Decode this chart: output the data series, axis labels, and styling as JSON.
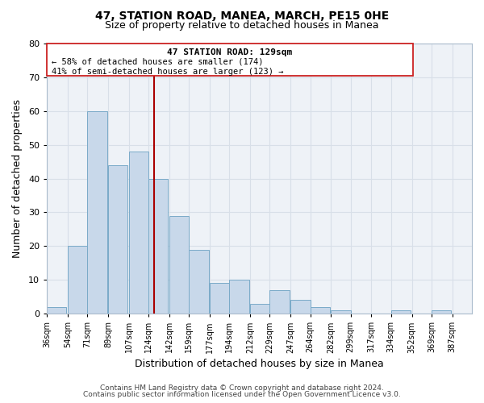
{
  "title": "47, STATION ROAD, MANEA, MARCH, PE15 0HE",
  "subtitle": "Size of property relative to detached houses in Manea",
  "xlabel": "Distribution of detached houses by size in Manea",
  "ylabel": "Number of detached properties",
  "bar_color": "#c8d8ea",
  "bar_edge_color": "#7aaac8",
  "bar_left_edges": [
    36,
    54,
    71,
    89,
    107,
    124,
    142,
    159,
    177,
    194,
    212,
    229,
    247,
    264,
    282,
    299,
    317,
    334,
    352,
    369
  ],
  "bar_heights": [
    2,
    20,
    60,
    44,
    48,
    40,
    29,
    19,
    9,
    10,
    3,
    7,
    4,
    2,
    1,
    0,
    0,
    1,
    0,
    1
  ],
  "bin_width": 17,
  "xtick_labels": [
    "36sqm",
    "54sqm",
    "71sqm",
    "89sqm",
    "107sqm",
    "124sqm",
    "142sqm",
    "159sqm",
    "177sqm",
    "194sqm",
    "212sqm",
    "229sqm",
    "247sqm",
    "264sqm",
    "282sqm",
    "299sqm",
    "317sqm",
    "334sqm",
    "352sqm",
    "369sqm",
    "387sqm"
  ],
  "xtick_positions": [
    36,
    54,
    71,
    89,
    107,
    124,
    142,
    159,
    177,
    194,
    212,
    229,
    247,
    264,
    282,
    299,
    317,
    334,
    352,
    369,
    387
  ],
  "ylim": [
    0,
    80
  ],
  "yticks": [
    0,
    10,
    20,
    30,
    40,
    50,
    60,
    70,
    80
  ],
  "xlim_left": 36,
  "xlim_right": 404,
  "marker_x": 129,
  "marker_color": "#aa0000",
  "annotation_title": "47 STATION ROAD: 129sqm",
  "annotation_line1": "← 58% of detached houses are smaller (174)",
  "annotation_line2": "41% of semi-detached houses are larger (123) →",
  "grid_color": "#d8dfe8",
  "background_color": "#eef2f7",
  "footer_line1": "Contains HM Land Registry data © Crown copyright and database right 2024.",
  "footer_line2": "Contains public sector information licensed under the Open Government Licence v3.0."
}
